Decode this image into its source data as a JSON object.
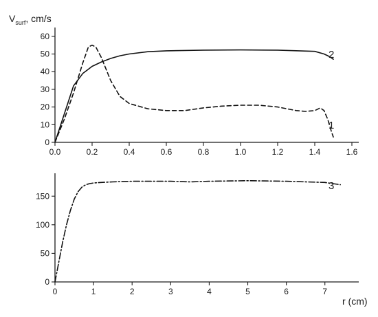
{
  "chart_data": [
    {
      "type": "line",
      "ylabel_main": "V",
      "ylabel_sub": "surf",
      "ylabel_rest": ", cm/s",
      "xlabel": "",
      "xlim": [
        0,
        1.6
      ],
      "ylim": [
        0,
        65
      ],
      "x_ticks": [
        0.0,
        0.2,
        0.4,
        0.6,
        0.8,
        1.0,
        1.2,
        1.4,
        1.6
      ],
      "x_tick_labels": [
        "0.0",
        "0.2",
        "0.4",
        "0.6",
        "0.8",
        "1.0",
        "1.2",
        "1.4",
        "1.6"
      ],
      "y_ticks": [
        0,
        10,
        20,
        30,
        40,
        50,
        60
      ],
      "y_tick_labels": [
        "0",
        "10",
        "20",
        "30",
        "40",
        "50",
        "60"
      ],
      "grid": false,
      "series": [
        {
          "name": "1",
          "style": "dashed",
          "x": [
            0.0,
            0.05,
            0.1,
            0.15,
            0.18,
            0.2,
            0.22,
            0.25,
            0.3,
            0.35,
            0.4,
            0.5,
            0.6,
            0.7,
            0.8,
            0.9,
            1.0,
            1.1,
            1.2,
            1.3,
            1.35,
            1.4,
            1.43,
            1.45,
            1.47,
            1.49,
            1.5
          ],
          "y": [
            0,
            13,
            28,
            45,
            54,
            55,
            54,
            48,
            35,
            26,
            22,
            19,
            18,
            18,
            19.5,
            20.5,
            21,
            21,
            20,
            18,
            17.5,
            18,
            19.5,
            18,
            13,
            6,
            3
          ]
        },
        {
          "name": "2",
          "style": "solid",
          "x": [
            0.0,
            0.05,
            0.1,
            0.15,
            0.2,
            0.25,
            0.3,
            0.35,
            0.4,
            0.5,
            0.6,
            0.8,
            1.0,
            1.2,
            1.4,
            1.45,
            1.48,
            1.5
          ],
          "y": [
            0,
            16,
            32,
            39,
            43,
            45.5,
            47.5,
            49,
            50,
            51.3,
            51.8,
            52.2,
            52.3,
            52.2,
            51.5,
            50,
            48.5,
            47
          ]
        }
      ]
    },
    {
      "type": "line",
      "xlabel": "r (cm)",
      "xlim": [
        0,
        7.7
      ],
      "ylim": [
        0,
        190
      ],
      "x_ticks": [
        0,
        1,
        2,
        3,
        4,
        5,
        6,
        7
      ],
      "x_tick_labels": [
        "0",
        "1",
        "2",
        "3",
        "4",
        "5",
        "6",
        "7"
      ],
      "y_ticks": [
        0,
        50,
        100,
        150
      ],
      "y_tick_labels": [
        "0",
        "50",
        "100",
        "150"
      ],
      "grid": false,
      "series": [
        {
          "name": "3",
          "style": "dash-dot",
          "x": [
            0.0,
            0.1,
            0.2,
            0.3,
            0.4,
            0.5,
            0.6,
            0.7,
            0.8,
            0.9,
            1.0,
            1.2,
            1.5,
            2.0,
            3.0,
            3.5,
            4.0,
            5.0,
            6.0,
            6.5,
            7.0,
            7.2,
            7.4
          ],
          "y": [
            0,
            35,
            70,
            100,
            125,
            145,
            158,
            166,
            170,
            172,
            173,
            174,
            175,
            176,
            176,
            175,
            176,
            177,
            176,
            175,
            174,
            172,
            170
          ]
        }
      ]
    }
  ]
}
